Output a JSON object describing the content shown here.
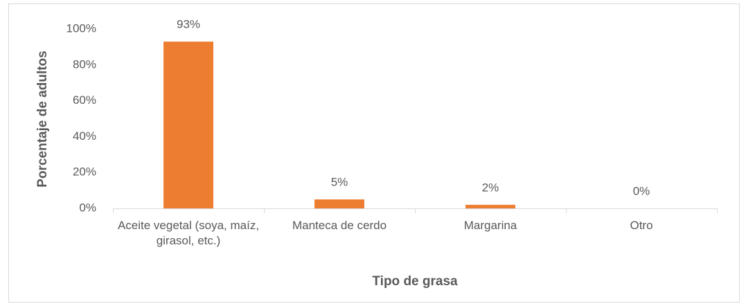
{
  "chart_data": {
    "type": "bar",
    "x_label": "Tipo de grasa",
    "y_label": "Porcentaje de adultos",
    "categories": [
      "Aceite vegetal (soya, maíz, girasol, etc.)",
      "Manteca de cerdo",
      "Margarina",
      "Otro"
    ],
    "values": [
      93,
      5,
      2,
      0
    ],
    "value_labels": [
      "93%",
      "5%",
      "2%",
      "0%"
    ],
    "color": "#ed7d31",
    "ylim": [
      0,
      100
    ],
    "yticks": [
      {
        "value": 0,
        "label": "0%"
      },
      {
        "value": 20,
        "label": "20%"
      },
      {
        "value": 40,
        "label": "40%"
      },
      {
        "value": 60,
        "label": "60%"
      },
      {
        "value": 80,
        "label": "80%"
      },
      {
        "value": 100,
        "label": "100%"
      }
    ],
    "grid": false
  }
}
